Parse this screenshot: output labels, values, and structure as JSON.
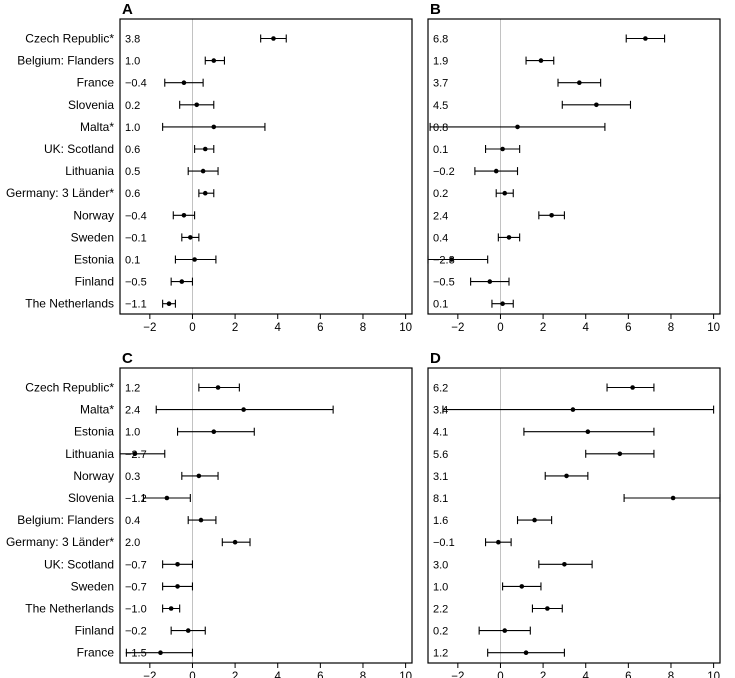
{
  "chart_data": [
    {
      "type": "forest",
      "panel": "A",
      "countries": [
        "Czech Republic*",
        "Belgium: Flanders",
        "France",
        "Slovenia",
        "Malta*",
        "UK: Scotland",
        "Lithuania",
        "Germany: 3 Länder*",
        "Norway",
        "Sweden",
        "Estonia",
        "Finland",
        "The Netherlands"
      ],
      "value_labels": [
        "3.8",
        "1.0",
        "−0.4",
        "0.2",
        "1.0",
        "0.6",
        "0.5",
        "0.6",
        "−0.4",
        "−0.1",
        "0.1",
        "−0.5",
        "−1.1"
      ],
      "estimates": [
        3.8,
        1.0,
        -0.4,
        0.2,
        1.0,
        0.6,
        0.5,
        0.6,
        -0.4,
        -0.1,
        0.1,
        -0.5,
        -1.1
      ],
      "ci_low": [
        3.2,
        0.6,
        -1.3,
        -0.6,
        -1.4,
        0.1,
        -0.2,
        0.3,
        -0.9,
        -0.5,
        -0.8,
        -1.0,
        -1.4
      ],
      "ci_high": [
        4.4,
        1.5,
        0.5,
        1.0,
        3.4,
        1.0,
        1.2,
        1.0,
        0.1,
        0.3,
        1.1,
        0.0,
        -0.8
      ],
      "xlim": [
        -3.4,
        10.3
      ],
      "xticks": [
        "−2",
        "0",
        "2",
        "4",
        "6",
        "8",
        "10"
      ],
      "xtick_values": [
        -2,
        0,
        2,
        4,
        6,
        8,
        10
      ],
      "reference_line": 0
    },
    {
      "type": "forest",
      "panel": "B",
      "countries": [
        "Czech Republic*",
        "Belgium: Flanders",
        "France",
        "Slovenia",
        "Malta*",
        "UK: Scotland",
        "Lithuania",
        "Germany: 3 Länder*",
        "Norway",
        "Sweden",
        "Estonia",
        "Finland",
        "The Netherlands"
      ],
      "value_labels": [
        "6.8",
        "1.9",
        "3.7",
        "4.5",
        "0.8",
        "0.1",
        "−0.2",
        "0.2",
        "2.4",
        "0.4",
        "−2.3",
        "−0.5",
        "0.1"
      ],
      "estimates": [
        6.8,
        1.9,
        3.7,
        4.5,
        0.8,
        0.1,
        -0.2,
        0.2,
        2.4,
        0.4,
        -2.3,
        -0.5,
        0.1
      ],
      "ci_low": [
        5.9,
        1.2,
        2.7,
        2.9,
        -3.3,
        -0.7,
        -1.2,
        -0.2,
        1.8,
        -0.1,
        -4.0,
        -1.4,
        -0.4
      ],
      "ci_high": [
        7.7,
        2.5,
        4.7,
        6.1,
        4.9,
        0.9,
        0.8,
        0.6,
        3.0,
        0.9,
        -0.6,
        0.4,
        0.6
      ],
      "xlim": [
        -3.4,
        10.3
      ],
      "xticks": [
        "−2",
        "0",
        "2",
        "4",
        "6",
        "8",
        "10"
      ],
      "xtick_values": [
        -2,
        0,
        2,
        4,
        6,
        8,
        10
      ],
      "reference_line": 0
    },
    {
      "type": "forest",
      "panel": "C",
      "countries": [
        "Czech Republic*",
        "Malta*",
        "Estonia",
        "Lithuania",
        "Norway",
        "Slovenia",
        "Belgium: Flanders",
        "Germany: 3 Länder*",
        "UK: Scotland",
        "Sweden",
        "The Netherlands",
        "Finland",
        "France"
      ],
      "value_labels": [
        "1.2",
        "2.4",
        "1.0",
        "−2.7",
        "0.3",
        "−1.2",
        "0.4",
        "2.0",
        "−0.7",
        "−0.7",
        "−1.0",
        "−0.2",
        "−1.5"
      ],
      "estimates": [
        1.2,
        2.4,
        1.0,
        -2.7,
        0.3,
        -1.2,
        0.4,
        2.0,
        -0.7,
        -0.7,
        -1.0,
        -0.2,
        -1.5
      ],
      "ci_low": [
        0.3,
        -1.7,
        -0.7,
        -4.1,
        -0.5,
        -2.3,
        -0.2,
        1.4,
        -1.4,
        -1.4,
        -1.4,
        -1.0,
        -3.1
      ],
      "ci_high": [
        2.2,
        6.6,
        2.9,
        -1.3,
        1.2,
        -0.1,
        1.1,
        2.7,
        0.0,
        0.0,
        -0.6,
        0.6,
        0.0
      ],
      "xlim": [
        -3.4,
        10.3
      ],
      "xticks": [
        "−2",
        "0",
        "2",
        "4",
        "6",
        "8",
        "10"
      ],
      "xtick_values": [
        -2,
        0,
        2,
        4,
        6,
        8,
        10
      ],
      "reference_line": 0
    },
    {
      "type": "forest",
      "panel": "D",
      "countries": [
        "Czech Republic*",
        "Malta*",
        "Estonia",
        "Lithuania",
        "Norway",
        "Slovenia",
        "Belgium: Flanders",
        "Germany: 3 Länder*",
        "UK: Scotland",
        "Sweden",
        "The Netherlands",
        "Finland",
        "France"
      ],
      "value_labels": [
        "6.2",
        "3.4",
        "4.1",
        "5.6",
        "3.1",
        "8.1",
        "1.6",
        "−0.1",
        "3.0",
        "1.0",
        "2.2",
        "0.2",
        "1.2"
      ],
      "estimates": [
        6.2,
        3.4,
        4.1,
        5.6,
        3.1,
        8.1,
        1.6,
        -0.1,
        3.0,
        1.0,
        2.2,
        0.2,
        1.2
      ],
      "ci_low": [
        5.0,
        -2.7,
        1.1,
        4.0,
        2.1,
        5.8,
        0.8,
        -0.7,
        1.8,
        0.1,
        1.5,
        -1.0,
        -0.6
      ],
      "ci_high": [
        7.2,
        10.0,
        7.2,
        7.2,
        4.1,
        10.4,
        2.4,
        0.5,
        4.3,
        1.9,
        2.9,
        1.4,
        3.0
      ],
      "xlim": [
        -3.4,
        10.3
      ],
      "xticks": [
        "−2",
        "0",
        "2",
        "4",
        "6",
        "8",
        "10"
      ],
      "xtick_values": [
        -2,
        0,
        2,
        4,
        6,
        8,
        10
      ],
      "reference_line": 0
    }
  ],
  "colors": {
    "frame": "#000000",
    "reference_line": "#bbbbbb",
    "marks": "#000000",
    "background": "#ffffff"
  }
}
